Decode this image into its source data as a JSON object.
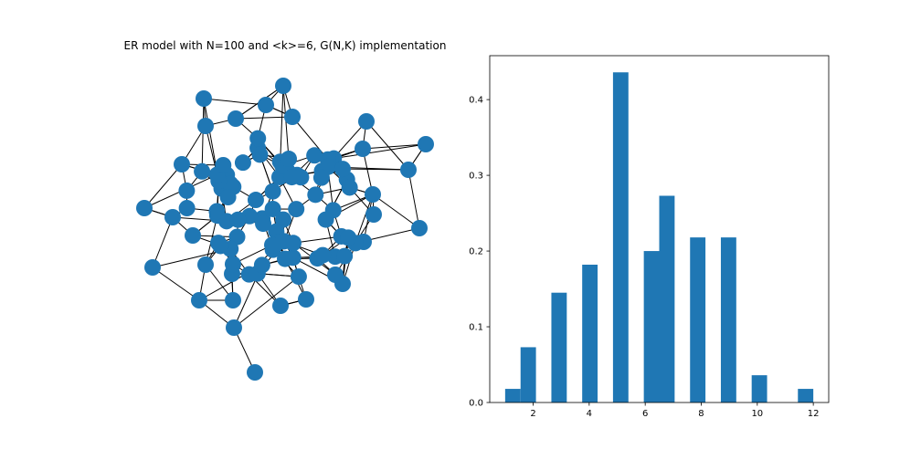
{
  "chart_data": [
    {
      "type": "network",
      "title": "ER model with N=100 and <k>=6, G(N,K) implementation",
      "node_count": 100,
      "node_color": "#1f77b4",
      "edge_color": "#000000"
    },
    {
      "type": "bar",
      "title": "",
      "xlabel": "",
      "ylabel": "",
      "xlim": [
        0.45,
        12.55
      ],
      "ylim": [
        0,
        0.458
      ],
      "xticks": [
        2,
        4,
        6,
        8,
        10,
        12
      ],
      "yticks": [
        0.0,
        0.1,
        0.2,
        0.3,
        0.4
      ],
      "xtick_labels": [
        "2",
        "4",
        "6",
        "8",
        "10",
        "12"
      ],
      "ytick_labels": [
        "0.0",
        "0.1",
        "0.2",
        "0.3",
        "0.4"
      ],
      "bar_color": "#1f77b4",
      "bin_width": 0.55,
      "bars": [
        {
          "x": 1.0,
          "value": 0.018
        },
        {
          "x": 1.55,
          "value": 0.073
        },
        {
          "x": 2.65,
          "value": 0.145
        },
        {
          "x": 3.75,
          "value": 0.182
        },
        {
          "x": 4.85,
          "value": 0.436
        },
        {
          "x": 5.95,
          "value": 0.2
        },
        {
          "x": 6.5,
          "value": 0.273
        },
        {
          "x": 7.6,
          "value": 0.218
        },
        {
          "x": 8.7,
          "value": 0.218
        },
        {
          "x": 9.8,
          "value": 0.036
        },
        {
          "x": 11.45,
          "value": 0.018
        }
      ]
    }
  ]
}
